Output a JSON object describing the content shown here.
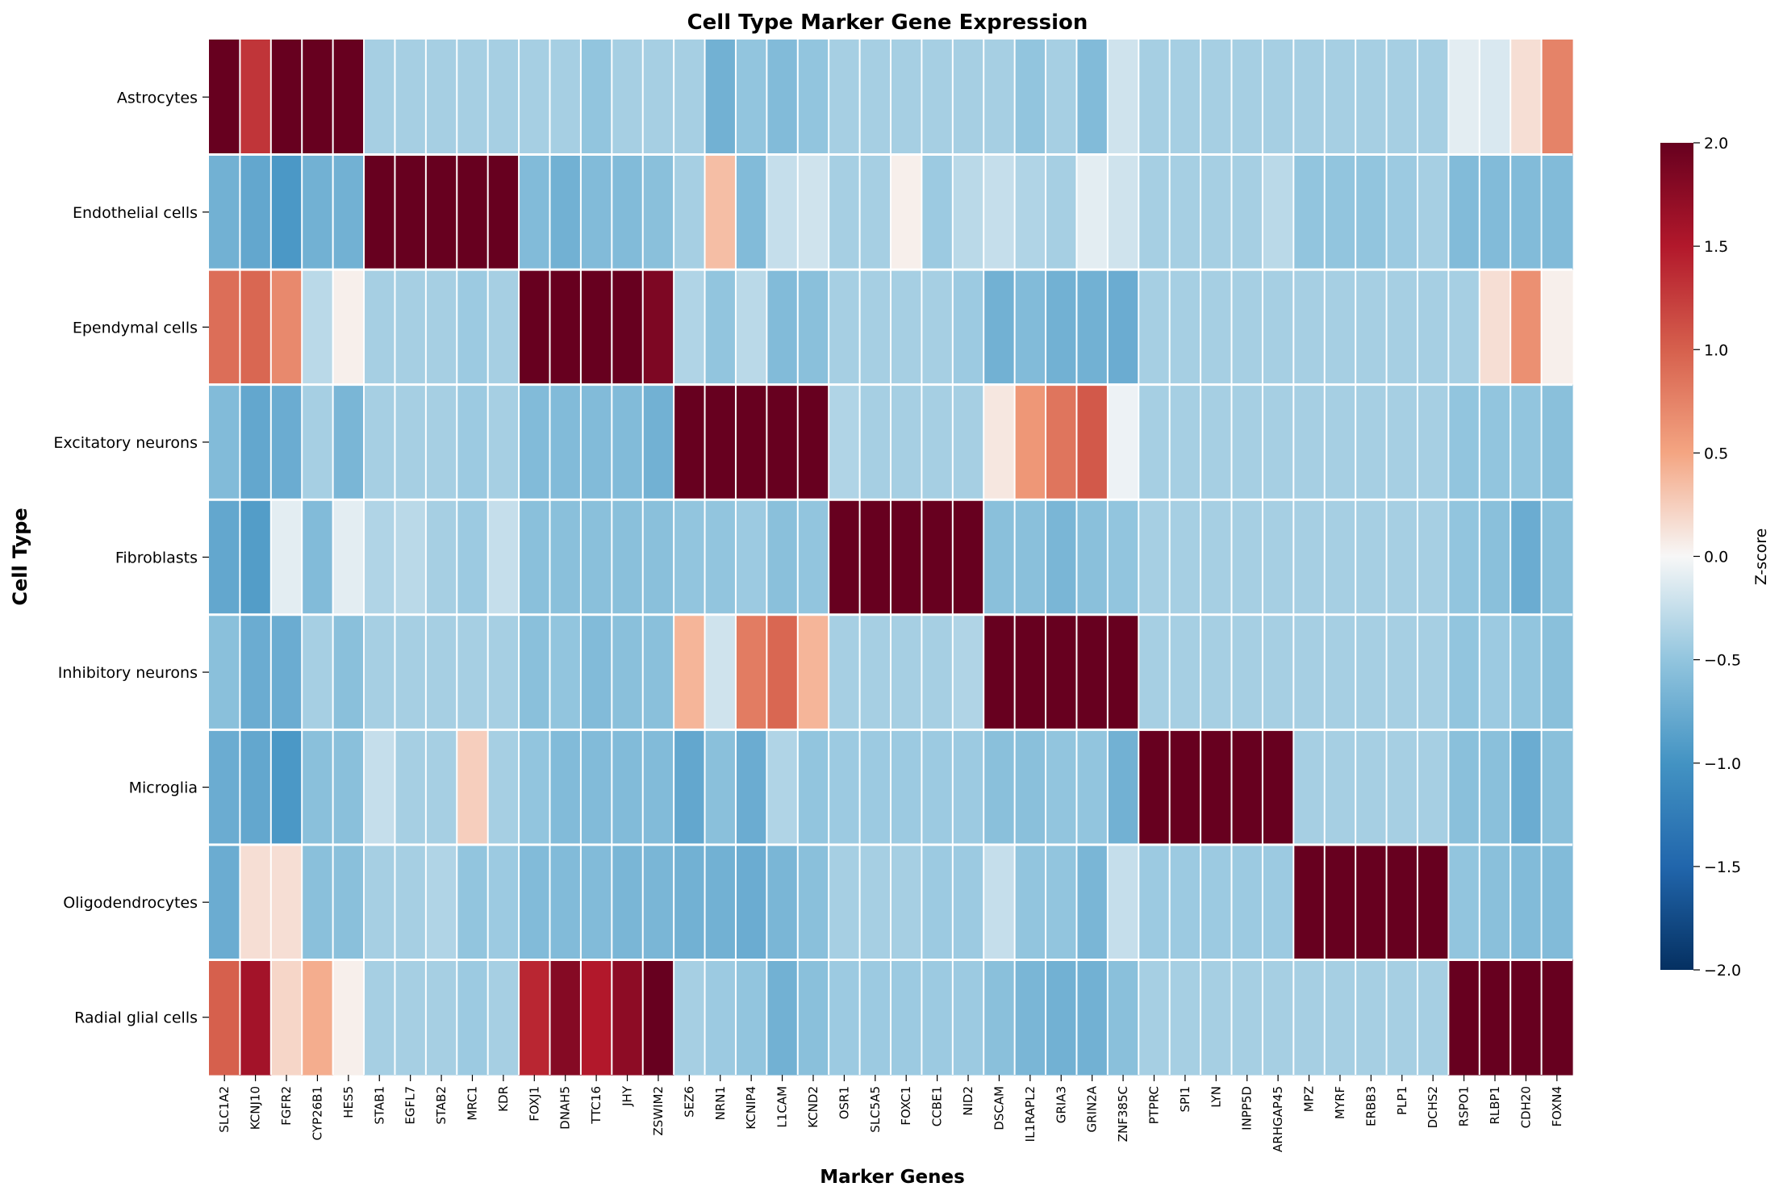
{
  "chart_data": {
    "type": "heatmap",
    "title": "Cell Type Marker Gene Expression",
    "xlabel": "Marker Genes",
    "ylabel": "Cell Type",
    "colorbar_label": "Z-score",
    "vmin": -2,
    "vmax": 2,
    "colorbar_ticks": [
      "2.0",
      "1.5",
      "1.0",
      "0.5",
      "0.0",
      "−0.5",
      "−1.0",
      "−1.5",
      "−2.0"
    ],
    "colorbar_tick_values": [
      2.0,
      1.5,
      1.0,
      0.5,
      0.0,
      -0.5,
      -1.0,
      -1.5,
      -2.0
    ],
    "colormap": "RdBu_r",
    "rows": [
      "Astrocytes",
      "Endothelial cells",
      "Ependymal cells",
      "Excitatory neurons",
      "Fibroblasts",
      "Inhibitory neurons",
      "Microglia",
      "Oligodendrocytes",
      "Radial glial cells"
    ],
    "columns": [
      "SLC1A2",
      "KCNJ10",
      "FGFR2",
      "CYP26B1",
      "HES5",
      "STAB1",
      "EGFL7",
      "STAB2",
      "MRC1",
      "KDR",
      "FOXJ1",
      "DNAH5",
      "TTC16",
      "JHY",
      "ZSWIM2",
      "SEZ6",
      "NRN1",
      "KCNIP4",
      "L1CAM",
      "KCND2",
      "OSR1",
      "SLC5A5",
      "FOXC1",
      "CCBE1",
      "NID2",
      "DSCAM",
      "IL1RAPL2",
      "GRIA3",
      "GRIN2A",
      "ZNF385C",
      "PTPRC",
      "SPI1",
      "LYN",
      "INPP5D",
      "ARHGAP45",
      "MPZ",
      "MYRF",
      "ERBB3",
      "PLP1",
      "DCHS2",
      "RSPO1",
      "RLBP1",
      "CDH20",
      "FOXN4"
    ],
    "values": [
      [
        2.2,
        1.3,
        2.3,
        2.4,
        2.3,
        -0.4,
        -0.4,
        -0.4,
        -0.4,
        -0.4,
        -0.4,
        -0.4,
        -0.5,
        -0.4,
        -0.4,
        -0.4,
        -0.7,
        -0.5,
        -0.6,
        -0.5,
        -0.4,
        -0.4,
        -0.4,
        -0.4,
        -0.4,
        -0.4,
        -0.5,
        -0.4,
        -0.6,
        -0.2,
        -0.4,
        -0.4,
        -0.4,
        -0.4,
        -0.4,
        -0.4,
        -0.4,
        -0.4,
        -0.4,
        -0.4,
        -0.1,
        -0.15,
        0.15,
        0.75
      ],
      [
        -0.7,
        -0.8,
        -0.95,
        -0.7,
        -0.7,
        2.3,
        2.3,
        2.3,
        2.3,
        2.3,
        -0.6,
        -0.7,
        -0.6,
        -0.6,
        -0.55,
        -0.4,
        0.35,
        -0.6,
        -0.25,
        -0.2,
        -0.4,
        -0.4,
        0.05,
        -0.45,
        -0.3,
        -0.25,
        -0.35,
        -0.4,
        -0.1,
        -0.2,
        -0.4,
        -0.4,
        -0.4,
        -0.4,
        -0.3,
        -0.5,
        -0.5,
        -0.5,
        -0.45,
        -0.4,
        -0.6,
        -0.6,
        -0.6,
        -0.6
      ],
      [
        0.9,
        0.95,
        0.7,
        -0.3,
        0.05,
        -0.4,
        -0.4,
        -0.4,
        -0.45,
        -0.4,
        2.3,
        2.0,
        2.3,
        2.2,
        1.85,
        -0.35,
        -0.5,
        -0.3,
        -0.6,
        -0.55,
        -0.4,
        -0.4,
        -0.4,
        -0.4,
        -0.45,
        -0.7,
        -0.6,
        -0.7,
        -0.7,
        -0.75,
        -0.4,
        -0.4,
        -0.4,
        -0.4,
        -0.4,
        -0.4,
        -0.4,
        -0.4,
        -0.4,
        -0.4,
        -0.4,
        0.15,
        0.65,
        0.05
      ],
      [
        -0.6,
        -0.8,
        -0.75,
        -0.4,
        -0.65,
        -0.4,
        -0.4,
        -0.4,
        -0.45,
        -0.4,
        -0.6,
        -0.6,
        -0.6,
        -0.6,
        -0.7,
        2.3,
        2.3,
        2.3,
        2.3,
        2.3,
        -0.35,
        -0.4,
        -0.4,
        -0.4,
        -0.4,
        0.1,
        0.6,
        0.85,
        1.05,
        -0.05,
        -0.4,
        -0.4,
        -0.4,
        -0.4,
        -0.4,
        -0.4,
        -0.4,
        -0.4,
        -0.4,
        -0.4,
        -0.5,
        -0.5,
        -0.5,
        -0.55
      ],
      [
        -0.8,
        -0.9,
        -0.1,
        -0.6,
        -0.1,
        -0.35,
        -0.3,
        -0.4,
        -0.45,
        -0.25,
        -0.55,
        -0.55,
        -0.55,
        -0.55,
        -0.55,
        -0.5,
        -0.5,
        -0.45,
        -0.55,
        -0.5,
        2.3,
        2.3,
        2.3,
        2.3,
        2.3,
        -0.55,
        -0.55,
        -0.65,
        -0.55,
        -0.5,
        -0.4,
        -0.4,
        -0.4,
        -0.4,
        -0.4,
        -0.4,
        -0.4,
        -0.4,
        -0.4,
        -0.4,
        -0.5,
        -0.55,
        -0.75,
        -0.55
      ],
      [
        -0.55,
        -0.75,
        -0.75,
        -0.4,
        -0.55,
        -0.4,
        -0.4,
        -0.4,
        -0.4,
        -0.4,
        -0.55,
        -0.5,
        -0.6,
        -0.55,
        -0.55,
        0.4,
        -0.2,
        0.8,
        0.95,
        0.4,
        -0.4,
        -0.4,
        -0.4,
        -0.4,
        -0.35,
        2.3,
        2.3,
        2.3,
        2.3,
        2.3,
        -0.4,
        -0.4,
        -0.4,
        -0.4,
        -0.4,
        -0.4,
        -0.4,
        -0.4,
        -0.4,
        -0.4,
        -0.5,
        -0.45,
        -0.5,
        -0.55
      ],
      [
        -0.75,
        -0.8,
        -0.95,
        -0.55,
        -0.55,
        -0.25,
        -0.4,
        -0.4,
        0.25,
        -0.4,
        -0.5,
        -0.6,
        -0.6,
        -0.6,
        -0.6,
        -0.8,
        -0.55,
        -0.75,
        -0.35,
        -0.5,
        -0.45,
        -0.45,
        -0.45,
        -0.45,
        -0.45,
        -0.55,
        -0.55,
        -0.5,
        -0.5,
        -0.7,
        2.3,
        2.3,
        2.3,
        2.3,
        2.3,
        -0.4,
        -0.4,
        -0.4,
        -0.4,
        -0.4,
        -0.55,
        -0.55,
        -0.75,
        -0.55
      ],
      [
        -0.75,
        0.15,
        0.15,
        -0.55,
        -0.55,
        -0.4,
        -0.4,
        -0.35,
        -0.5,
        -0.45,
        -0.6,
        -0.6,
        -0.6,
        -0.65,
        -0.65,
        -0.7,
        -0.7,
        -0.75,
        -0.65,
        -0.55,
        -0.4,
        -0.4,
        -0.4,
        -0.45,
        -0.45,
        -0.25,
        -0.5,
        -0.5,
        -0.65,
        -0.25,
        -0.45,
        -0.45,
        -0.45,
        -0.45,
        -0.45,
        2.3,
        2.3,
        2.3,
        2.3,
        2.3,
        -0.5,
        -0.55,
        -0.6,
        -0.6
      ],
      [
        1.0,
        1.6,
        0.2,
        0.45,
        0.05,
        -0.4,
        -0.4,
        -0.4,
        -0.45,
        -0.4,
        1.4,
        1.8,
        1.5,
        1.75,
        2.1,
        -0.4,
        -0.45,
        -0.5,
        -0.7,
        -0.55,
        -0.45,
        -0.45,
        -0.45,
        -0.45,
        -0.45,
        -0.55,
        -0.65,
        -0.7,
        -0.7,
        -0.55,
        -0.4,
        -0.4,
        -0.4,
        -0.4,
        -0.4,
        -0.4,
        -0.4,
        -0.4,
        -0.4,
        -0.4,
        2.3,
        2.3,
        2.3,
        2.3
      ]
    ]
  }
}
